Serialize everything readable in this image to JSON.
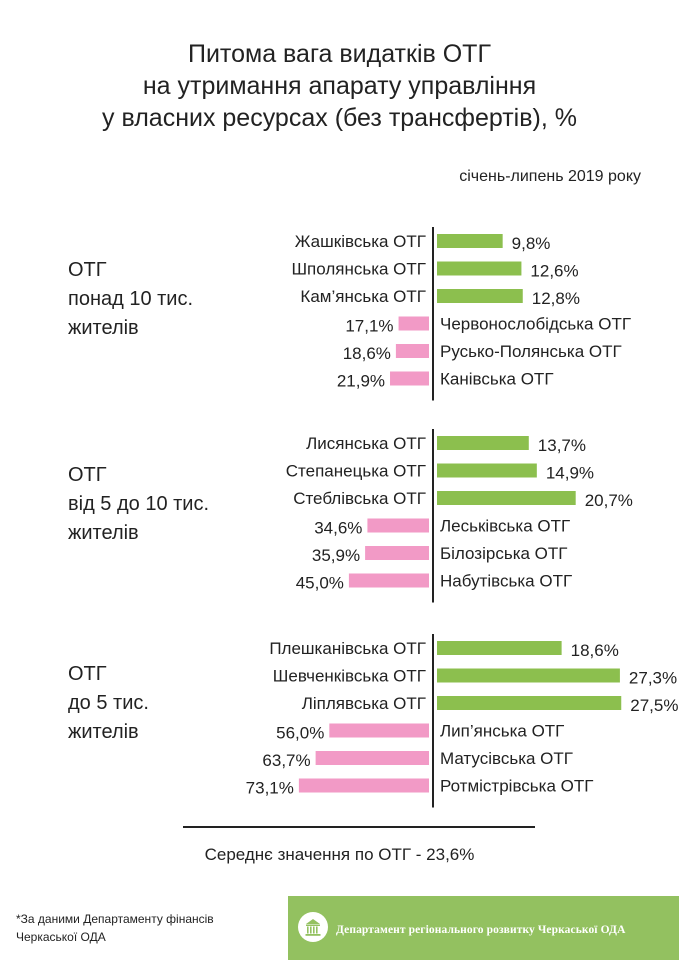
{
  "title_lines": [
    "Питома вага видатків ОТГ",
    "на утримання апарату управління",
    "у власних ресурсах (без трансфертів), %"
  ],
  "subtitle": "січень-липень 2019 року",
  "colors": {
    "green": "#8cbf4e",
    "pink": "#f29ac6",
    "axis": "#222222",
    "footer": "#93c160"
  },
  "chart_data": {
    "type": "bar",
    "groups": [
      {
        "label_lines": [
          "ОТГ",
          "понад 10 тис.",
          "жителів"
        ],
        "below_average": [
          {
            "name": "Жашківська ОТГ",
            "value": 9.8,
            "label": "9,8%"
          },
          {
            "name": "Шполянська ОТГ",
            "value": 12.6,
            "label": "12,6%"
          },
          {
            "name": "Кам’янська ОТГ",
            "value": 12.8,
            "label": "12,8%"
          }
        ],
        "above_average": [
          {
            "name": "Червонослобідська ОТГ",
            "value": 17.1,
            "label": "17,1%"
          },
          {
            "name": "Русько-Полянська ОТГ",
            "value": 18.6,
            "label": "18,6%"
          },
          {
            "name": "Канівська ОТГ",
            "value": 21.9,
            "label": "21,9%"
          }
        ]
      },
      {
        "label_lines": [
          "ОТГ",
          "від 5 до 10 тис.",
          "жителів"
        ],
        "below_average": [
          {
            "name": "Лисянська ОТГ",
            "value": 13.7,
            "label": "13,7%"
          },
          {
            "name": "Степанецька ОТГ",
            "value": 14.9,
            "label": "14,9%"
          },
          {
            "name": "Стеблівська ОТГ",
            "value": 20.7,
            "label": "20,7%"
          }
        ],
        "above_average": [
          {
            "name": "Леськівська ОТГ",
            "value": 34.6,
            "label": "34,6%"
          },
          {
            "name": "Білозірська ОТГ",
            "value": 35.9,
            "label": "35,9%"
          },
          {
            "name": "Набутівська ОТГ",
            "value": 45.0,
            "label": "45,0%"
          }
        ]
      },
      {
        "label_lines": [
          "ОТГ",
          "до 5 тис.",
          "жителів"
        ],
        "below_average": [
          {
            "name": "Плешканівська ОТГ",
            "value": 18.6,
            "label": "18,6%"
          },
          {
            "name": "Шевченківська ОТГ",
            "value": 27.3,
            "label": "27,3%"
          },
          {
            "name": "Ліплявська ОТГ",
            "value": 27.5,
            "label": "27,5%"
          }
        ],
        "above_average": [
          {
            "name": "Лип’янська ОТГ",
            "value": 56.0,
            "label": "56,0%"
          },
          {
            "name": "Матусівська ОТГ",
            "value": 63.7,
            "label": "63,7%"
          },
          {
            "name": "Ротмістрівська ОТГ",
            "value": 73.1,
            "label": "73,1%"
          }
        ]
      }
    ]
  },
  "average_text": "Середнє значення по ОТГ - 23,6%",
  "footnote_lines": [
    "*За даними Департаменту фінансів",
    "Черкаської ОДА"
  ],
  "footer_text": "Департамент регіонального розвитку Черкаської ОДА"
}
